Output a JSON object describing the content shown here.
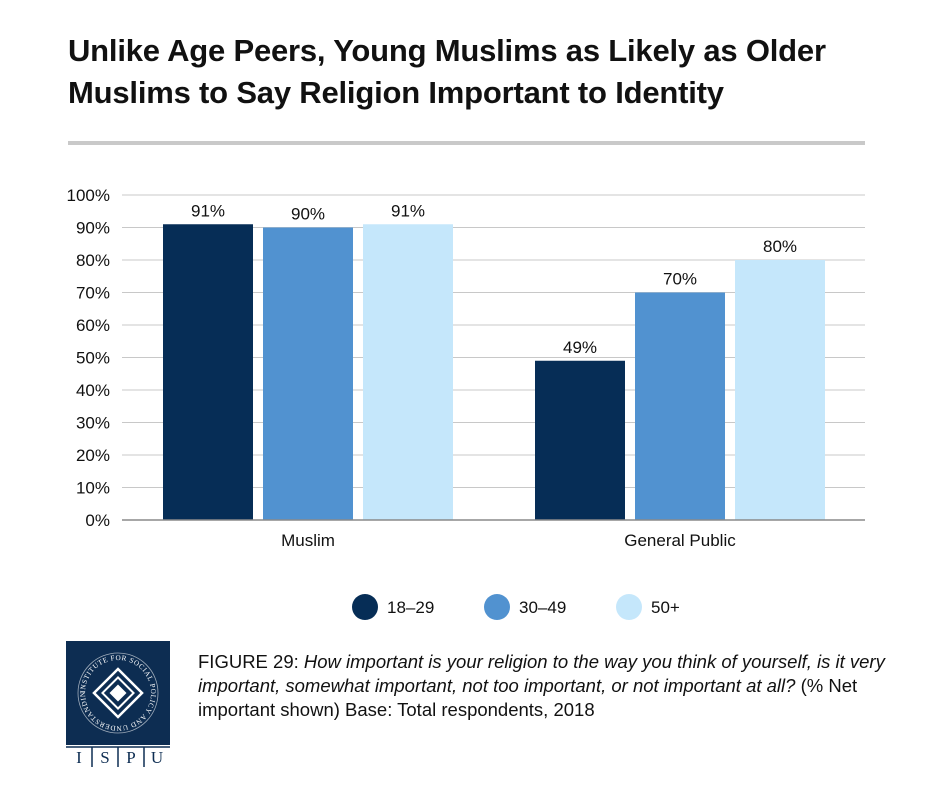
{
  "page": {
    "title": "Unlike Age Peers, Young Muslims as Likely as Older Muslims to Say Religion Important to Identity"
  },
  "chart_data": {
    "type": "bar",
    "title": "Unlike Age Peers, Young Muslims as Likely as Older Muslims to Say Religion Important to Identity",
    "xlabel": "",
    "ylabel": "",
    "ylim": [
      0,
      100
    ],
    "yticks": [
      "0%",
      "10%",
      "20%",
      "30%",
      "40%",
      "50%",
      "60%",
      "70%",
      "80%",
      "90%",
      "100%"
    ],
    "categories": [
      "Muslim",
      "General Public"
    ],
    "grid": true,
    "legend_position": "bottom",
    "series": [
      {
        "name": "18–29",
        "color": "#062d56",
        "values": [
          91,
          49
        ],
        "labels": [
          "91%",
          "49%"
        ]
      },
      {
        "name": "30–49",
        "color": "#5192d0",
        "values": [
          90,
          70
        ],
        "labels": [
          "90%",
          "70%"
        ]
      },
      {
        "name": "50+",
        "color": "#c5e7fb",
        "values": [
          91,
          80
        ],
        "labels": [
          "91%",
          "80%"
        ]
      }
    ]
  },
  "caption": {
    "figure_label": "FIGURE 29",
    "question": "How important is your religion to the way you think of yourself, is it very important, somewhat important, not too important, or not important at all?",
    "note": "(% Net important shown) Base: Total respondents, 2018"
  },
  "logo": {
    "ring_text": "INSTITUTE FOR SOCIAL POLICY AND UNDERSTANDING",
    "letters": [
      "I",
      "S",
      "P",
      "U"
    ]
  }
}
